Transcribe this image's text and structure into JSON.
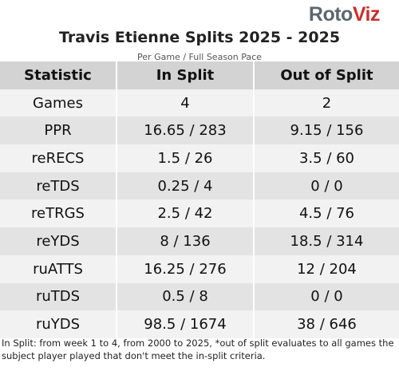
{
  "logo": {
    "part1": "Roto",
    "part2": "Viz"
  },
  "title": "Travis Etienne Splits 2025 - 2025",
  "subtitle": "Per Game / Full Season Pace",
  "table": {
    "header": [
      "Statistic",
      "In Split",
      "Out of Split"
    ],
    "rows": [
      [
        "Games",
        "4",
        "2"
      ],
      [
        "PPR",
        "16.65 / 283",
        "9.15 / 156"
      ],
      [
        "reRECS",
        "1.5 / 26",
        "3.5 / 60"
      ],
      [
        "reTDS",
        "0.25 / 4",
        "0 / 0"
      ],
      [
        "reTRGS",
        "2.5 / 42",
        "4.5 / 76"
      ],
      [
        "reYDS",
        "8 / 136",
        "18.5 / 314"
      ],
      [
        "ruATTS",
        "16.25 / 276",
        "12 / 204"
      ],
      [
        "ruTDS",
        "0.5 / 8",
        "0 / 0"
      ],
      [
        "ruYDS",
        "98.5 / 1674",
        "38 / 646"
      ]
    ]
  },
  "footnote": "In Split: from week 1 to 4, from 2000 to 2025,  *out of split evaluates to all games the subject player played that don't meet the in-split criteria."
}
